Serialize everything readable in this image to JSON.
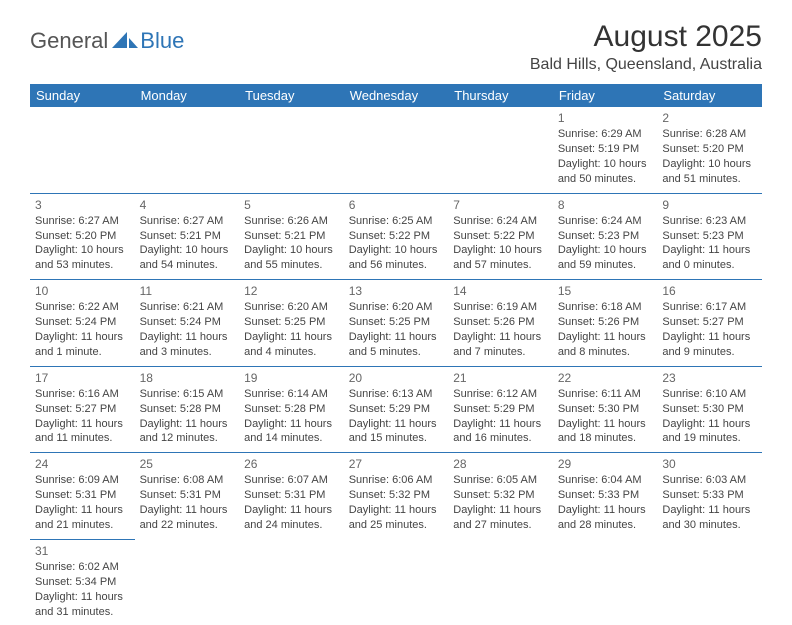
{
  "logo": {
    "text1": "General",
    "text2": "Blue"
  },
  "title": "August 2025",
  "location": "Bald Hills, Queensland, Australia",
  "colors": {
    "header_bg": "#2e75b6",
    "header_text": "#ffffff",
    "border": "#2e75b6",
    "body_text": "#444444",
    "daynum": "#666666",
    "background": "#ffffff"
  },
  "weekdays": [
    "Sunday",
    "Monday",
    "Tuesday",
    "Wednesday",
    "Thursday",
    "Friday",
    "Saturday"
  ],
  "weeks": [
    [
      null,
      null,
      null,
      null,
      null,
      {
        "n": "1",
        "sr": "Sunrise: 6:29 AM",
        "ss": "Sunset: 5:19 PM",
        "dl": "Daylight: 10 hours and 50 minutes."
      },
      {
        "n": "2",
        "sr": "Sunrise: 6:28 AM",
        "ss": "Sunset: 5:20 PM",
        "dl": "Daylight: 10 hours and 51 minutes."
      }
    ],
    [
      {
        "n": "3",
        "sr": "Sunrise: 6:27 AM",
        "ss": "Sunset: 5:20 PM",
        "dl": "Daylight: 10 hours and 53 minutes."
      },
      {
        "n": "4",
        "sr": "Sunrise: 6:27 AM",
        "ss": "Sunset: 5:21 PM",
        "dl": "Daylight: 10 hours and 54 minutes."
      },
      {
        "n": "5",
        "sr": "Sunrise: 6:26 AM",
        "ss": "Sunset: 5:21 PM",
        "dl": "Daylight: 10 hours and 55 minutes."
      },
      {
        "n": "6",
        "sr": "Sunrise: 6:25 AM",
        "ss": "Sunset: 5:22 PM",
        "dl": "Daylight: 10 hours and 56 minutes."
      },
      {
        "n": "7",
        "sr": "Sunrise: 6:24 AM",
        "ss": "Sunset: 5:22 PM",
        "dl": "Daylight: 10 hours and 57 minutes."
      },
      {
        "n": "8",
        "sr": "Sunrise: 6:24 AM",
        "ss": "Sunset: 5:23 PM",
        "dl": "Daylight: 10 hours and 59 minutes."
      },
      {
        "n": "9",
        "sr": "Sunrise: 6:23 AM",
        "ss": "Sunset: 5:23 PM",
        "dl": "Daylight: 11 hours and 0 minutes."
      }
    ],
    [
      {
        "n": "10",
        "sr": "Sunrise: 6:22 AM",
        "ss": "Sunset: 5:24 PM",
        "dl": "Daylight: 11 hours and 1 minute."
      },
      {
        "n": "11",
        "sr": "Sunrise: 6:21 AM",
        "ss": "Sunset: 5:24 PM",
        "dl": "Daylight: 11 hours and 3 minutes."
      },
      {
        "n": "12",
        "sr": "Sunrise: 6:20 AM",
        "ss": "Sunset: 5:25 PM",
        "dl": "Daylight: 11 hours and 4 minutes."
      },
      {
        "n": "13",
        "sr": "Sunrise: 6:20 AM",
        "ss": "Sunset: 5:25 PM",
        "dl": "Daylight: 11 hours and 5 minutes."
      },
      {
        "n": "14",
        "sr": "Sunrise: 6:19 AM",
        "ss": "Sunset: 5:26 PM",
        "dl": "Daylight: 11 hours and 7 minutes."
      },
      {
        "n": "15",
        "sr": "Sunrise: 6:18 AM",
        "ss": "Sunset: 5:26 PM",
        "dl": "Daylight: 11 hours and 8 minutes."
      },
      {
        "n": "16",
        "sr": "Sunrise: 6:17 AM",
        "ss": "Sunset: 5:27 PM",
        "dl": "Daylight: 11 hours and 9 minutes."
      }
    ],
    [
      {
        "n": "17",
        "sr": "Sunrise: 6:16 AM",
        "ss": "Sunset: 5:27 PM",
        "dl": "Daylight: 11 hours and 11 minutes."
      },
      {
        "n": "18",
        "sr": "Sunrise: 6:15 AM",
        "ss": "Sunset: 5:28 PM",
        "dl": "Daylight: 11 hours and 12 minutes."
      },
      {
        "n": "19",
        "sr": "Sunrise: 6:14 AM",
        "ss": "Sunset: 5:28 PM",
        "dl": "Daylight: 11 hours and 14 minutes."
      },
      {
        "n": "20",
        "sr": "Sunrise: 6:13 AM",
        "ss": "Sunset: 5:29 PM",
        "dl": "Daylight: 11 hours and 15 minutes."
      },
      {
        "n": "21",
        "sr": "Sunrise: 6:12 AM",
        "ss": "Sunset: 5:29 PM",
        "dl": "Daylight: 11 hours and 16 minutes."
      },
      {
        "n": "22",
        "sr": "Sunrise: 6:11 AM",
        "ss": "Sunset: 5:30 PM",
        "dl": "Daylight: 11 hours and 18 minutes."
      },
      {
        "n": "23",
        "sr": "Sunrise: 6:10 AM",
        "ss": "Sunset: 5:30 PM",
        "dl": "Daylight: 11 hours and 19 minutes."
      }
    ],
    [
      {
        "n": "24",
        "sr": "Sunrise: 6:09 AM",
        "ss": "Sunset: 5:31 PM",
        "dl": "Daylight: 11 hours and 21 minutes."
      },
      {
        "n": "25",
        "sr": "Sunrise: 6:08 AM",
        "ss": "Sunset: 5:31 PM",
        "dl": "Daylight: 11 hours and 22 minutes."
      },
      {
        "n": "26",
        "sr": "Sunrise: 6:07 AM",
        "ss": "Sunset: 5:31 PM",
        "dl": "Daylight: 11 hours and 24 minutes."
      },
      {
        "n": "27",
        "sr": "Sunrise: 6:06 AM",
        "ss": "Sunset: 5:32 PM",
        "dl": "Daylight: 11 hours and 25 minutes."
      },
      {
        "n": "28",
        "sr": "Sunrise: 6:05 AM",
        "ss": "Sunset: 5:32 PM",
        "dl": "Daylight: 11 hours and 27 minutes."
      },
      {
        "n": "29",
        "sr": "Sunrise: 6:04 AM",
        "ss": "Sunset: 5:33 PM",
        "dl": "Daylight: 11 hours and 28 minutes."
      },
      {
        "n": "30",
        "sr": "Sunrise: 6:03 AM",
        "ss": "Sunset: 5:33 PM",
        "dl": "Daylight: 11 hours and 30 minutes."
      }
    ],
    [
      {
        "n": "31",
        "sr": "Sunrise: 6:02 AM",
        "ss": "Sunset: 5:34 PM",
        "dl": "Daylight: 11 hours and 31 minutes."
      },
      null,
      null,
      null,
      null,
      null,
      null
    ]
  ]
}
